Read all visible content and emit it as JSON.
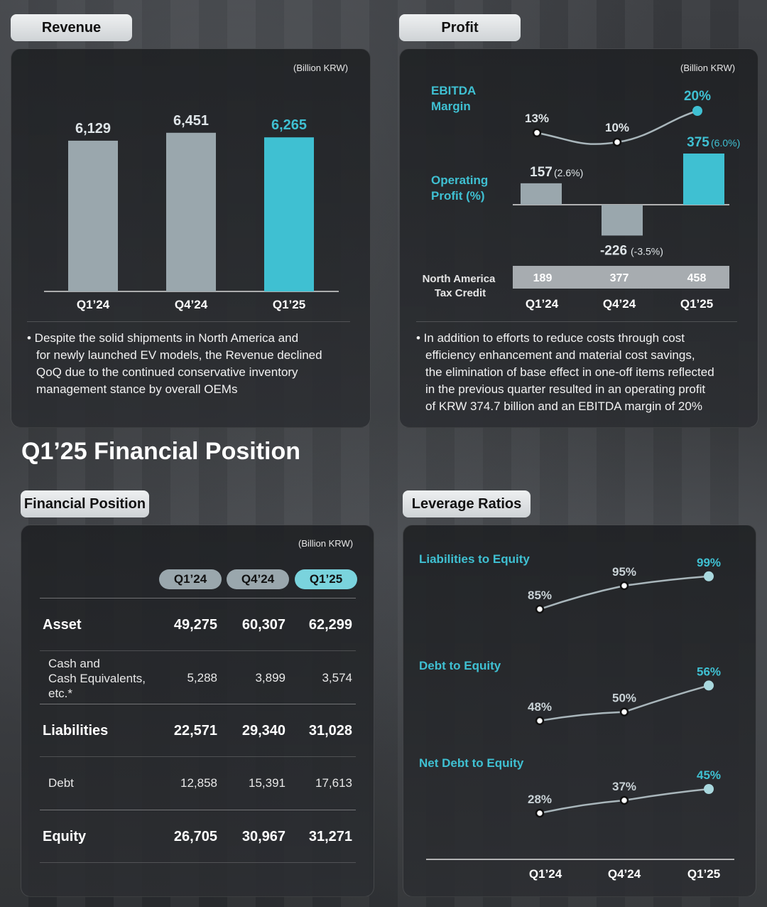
{
  "revenue": {
    "pill_label": "Revenue",
    "unit": "(Billion KRW)",
    "bullet": "• Despite the solid shipments in North America and for newly launched EV models, the Revenue declined QoQ due to the continued conservative inventory management stance by overall OEMs",
    "bullet_lines": [
      "• Despite the solid shipments in North America and",
      "for newly launched EV models, the Revenue declined",
      "QoQ due to the continued conservative inventory",
      "management stance by overall OEMs"
    ]
  },
  "profit": {
    "pill_label": "Profit",
    "unit": "(Billion KRW)",
    "ebitda_label_1": "EBITDA",
    "ebitda_label_2": "Margin",
    "op_label_1": "Operating",
    "op_label_2": "Profit (%)",
    "na_label_1": "North America",
    "na_label_2": "Tax Credit",
    "bullet_lines": [
      "• In addition to efforts to reduce costs through cost",
      "efficiency enhancement and material cost savings,",
      "the elimination of base effect in one-off items reflected",
      "in the previous quarter resulted in an operating profit",
      "of KRW 374.7 billion and an EBITDA margin of 20%"
    ]
  },
  "section_title": "Q1’25 Financial Position",
  "financial_position": {
    "pill_label": "Financial Position",
    "unit": "(Billion KRW)",
    "headers": [
      "Q1’24",
      "Q4’24",
      "Q1’25"
    ],
    "rows": [
      {
        "label": "Asset",
        "values": [
          "49,275",
          "60,307",
          "62,299"
        ],
        "main": true
      },
      {
        "label_lines": [
          "Cash and",
          "Cash Equivalents,",
          "etc.*"
        ],
        "values": [
          "5,288",
          "3,899",
          "3,574"
        ],
        "main": false
      },
      {
        "label": "Liabilities",
        "values": [
          "22,571",
          "29,340",
          "31,028"
        ],
        "main": true
      },
      {
        "label": "Debt",
        "values": [
          "12,858",
          "15,391",
          "17,613"
        ],
        "main": false
      },
      {
        "label": "Equity",
        "values": [
          "26,705",
          "30,967",
          "31,271"
        ],
        "main": true
      }
    ]
  },
  "leverage": {
    "pill_label": "Leverage Ratios"
  },
  "colors": {
    "accent": "#3fc0d2",
    "bar_gray": "#9aa7ad",
    "line_gray": "#a9b6bb"
  },
  "chart_data": [
    {
      "type": "bar",
      "title": "Revenue",
      "unit": "(Billion KRW)",
      "categories": [
        "Q1’24",
        "Q4’24",
        "Q1’25"
      ],
      "values": [
        6129,
        6451,
        6265
      ],
      "labels": [
        "6,129",
        "6,451",
        "6,265"
      ],
      "highlight": "Q1’25"
    },
    {
      "type": "line",
      "title": "EBITDA Margin",
      "categories": [
        "Q1’24",
        "Q4’24",
        "Q1’25"
      ],
      "values": [
        13,
        10,
        20
      ],
      "labels": [
        "13%",
        "10%",
        "20%"
      ]
    },
    {
      "type": "bar",
      "title": "Operating Profit (%)",
      "categories": [
        "Q1’24",
        "Q4’24",
        "Q1’25"
      ],
      "values": [
        157,
        -226,
        375
      ],
      "labels": [
        "157",
        "-226",
        "375"
      ],
      "pct_labels": [
        "(2.6%)",
        "(-3.5%)",
        "(6.0%)"
      ]
    },
    {
      "type": "table",
      "title": "North America Tax Credit",
      "categories": [
        "Q1’24",
        "Q4’24",
        "Q1’25"
      ],
      "values": [
        189,
        377,
        458
      ]
    },
    {
      "type": "line",
      "title": "Leverage Ratios",
      "categories": [
        "Q1’24",
        "Q4’24",
        "Q1’25"
      ],
      "series": [
        {
          "name": "Liabilities to Equity",
          "values": [
            85,
            95,
            99
          ],
          "labels": [
            "85%",
            "95%",
            "99%"
          ]
        },
        {
          "name": "Debt to Equity",
          "values": [
            48,
            50,
            56
          ],
          "labels": [
            "48%",
            "50%",
            "56%"
          ]
        },
        {
          "name": "Net Debt to Equity",
          "values": [
            28,
            37,
            45
          ],
          "labels": [
            "28%",
            "37%",
            "45%"
          ]
        }
      ]
    }
  ]
}
